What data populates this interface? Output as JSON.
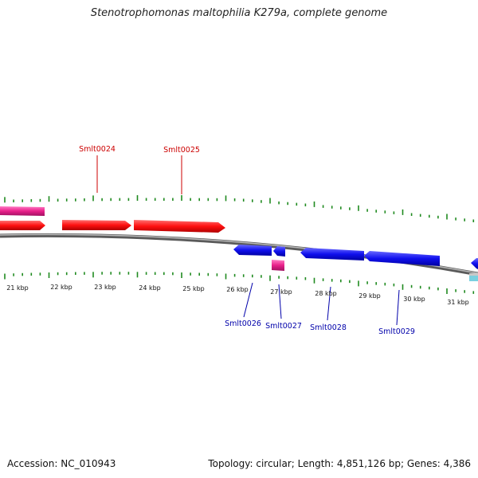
{
  "title": "Stenotrophomonas maltophilia K279a, complete genome",
  "footer": {
    "accession": "Accession: NC_010943",
    "summary": "Topology: circular; Length: 4,851,126 bp; Genes: 4,386"
  },
  "colors": {
    "forward_gene": "#ff1010",
    "reverse_gene": "#1010ee",
    "rna_gene": "#e8208a",
    "backbone": "#808080",
    "ticks": "#1f8a1f",
    "forward_label": "#cc0000",
    "reverse_label": "#0000aa"
  },
  "kbp_labels": [
    "21 kbp",
    "22 kbp",
    "23 kbp",
    "24 kbp",
    "25 kbp",
    "26 kbp",
    "27 kbp",
    "28 kbp",
    "29 kbp",
    "30 kbp",
    "31 kbp"
  ],
  "gene_labels": {
    "forward": [
      "Smlt0024",
      "Smlt0025"
    ],
    "reverse": [
      "Smlt0026",
      "Smlt0027",
      "Smlt0028",
      "Smlt0029"
    ]
  }
}
